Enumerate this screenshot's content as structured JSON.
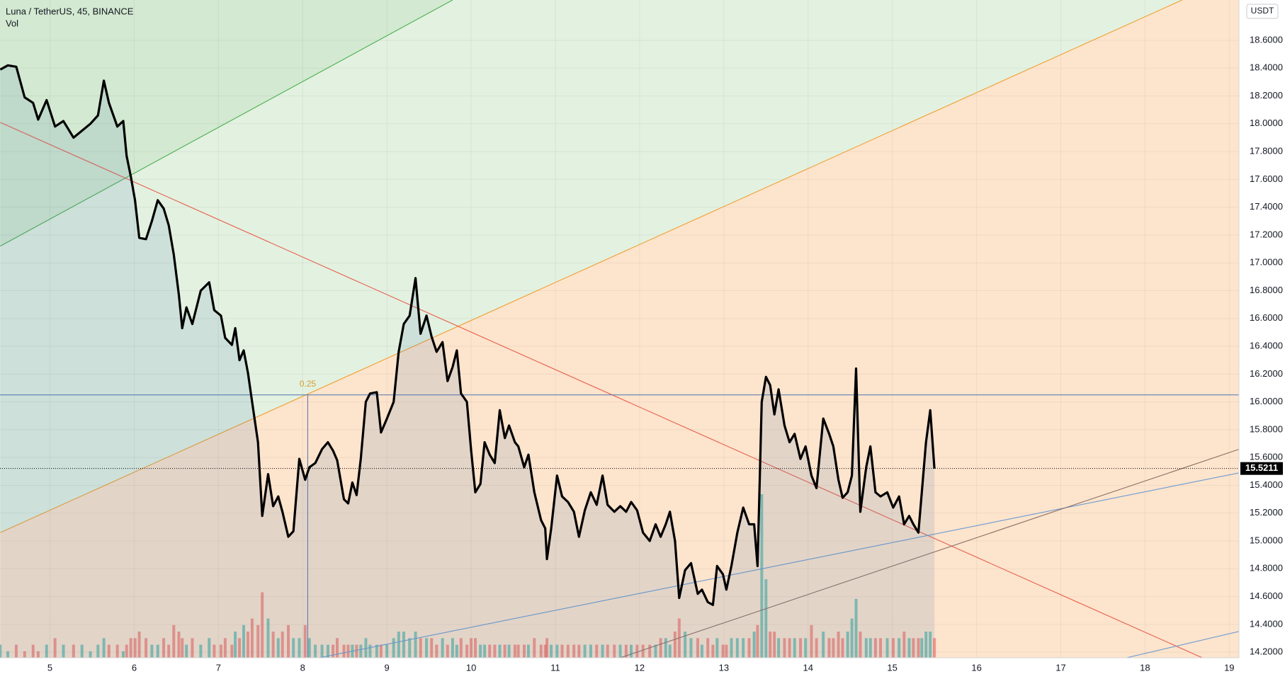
{
  "chart_data": {
    "type": "line",
    "currency": "USDT",
    "background": "#fde4cd",
    "grid": true,
    "xlim": [
      4.407,
      19.115
    ],
    "xticks": [
      5,
      6,
      7,
      8,
      9,
      10,
      11,
      12,
      13,
      14,
      15,
      16,
      17,
      18,
      19
    ],
    "ylim": [
      14.16,
      18.89
    ],
    "yticks": [
      {
        "value": 14.2,
        "label": "14.2000"
      },
      {
        "value": 14.4,
        "label": "14.4000"
      },
      {
        "value": 14.6,
        "label": "14.6000"
      },
      {
        "value": 14.8,
        "label": "14.8000"
      },
      {
        "value": 15.0,
        "label": "15.0000"
      },
      {
        "value": 15.2,
        "label": "15.2000"
      },
      {
        "value": 15.4,
        "label": "15.4000"
      },
      {
        "value": 15.6,
        "label": "15.6000"
      },
      {
        "value": 15.8,
        "label": "15.8000"
      },
      {
        "value": 16.0,
        "label": "16.0000"
      },
      {
        "value": 16.2,
        "label": "16.2000"
      },
      {
        "value": 16.4,
        "label": "16.4000"
      },
      {
        "value": 16.6,
        "label": "16.6000"
      },
      {
        "value": 16.8,
        "label": "16.8000"
      },
      {
        "value": 17.0,
        "label": "17.0000"
      },
      {
        "value": 17.2,
        "label": "17.2000"
      },
      {
        "value": 17.4,
        "label": "17.4000"
      },
      {
        "value": 17.6,
        "label": "17.6000"
      },
      {
        "value": 17.8,
        "label": "17.8000"
      },
      {
        "value": 18.0,
        "label": "18.0000"
      },
      {
        "value": 18.2,
        "label": "18.2000"
      },
      {
        "value": 18.4,
        "label": "18.4000"
      },
      {
        "value": 18.6,
        "label": "18.6000"
      }
    ],
    "x": [
      4.41,
      4.5,
      4.6,
      4.7,
      4.8,
      4.86,
      4.96,
      5.06,
      5.16,
      5.28,
      5.38,
      5.48,
      5.57,
      5.64,
      5.7,
      5.8,
      5.87,
      5.91,
      5.96,
      6.01,
      6.06,
      6.14,
      6.21,
      6.28,
      6.35,
      6.41,
      6.47,
      6.53,
      6.57,
      6.62,
      6.69,
      6.79,
      6.89,
      6.95,
      7.03,
      7.08,
      7.16,
      7.2,
      7.25,
      7.3,
      7.35,
      7.4,
      7.47,
      7.52,
      7.59,
      7.65,
      7.71,
      7.76,
      7.83,
      7.89,
      7.96,
      8.03,
      8.08,
      8.15,
      8.23,
      8.3,
      8.36,
      8.41,
      8.49,
      8.54,
      8.59,
      8.64,
      8.69,
      8.75,
      8.8,
      8.88,
      8.93,
      9.0,
      9.08,
      9.14,
      9.2,
      9.27,
      9.34,
      9.4,
      9.47,
      9.53,
      9.59,
      9.66,
      9.72,
      9.78,
      9.83,
      9.88,
      9.95,
      10.0,
      10.05,
      10.11,
      10.16,
      10.22,
      10.28,
      10.34,
      10.4,
      10.45,
      10.52,
      10.56,
      10.63,
      10.68,
      10.75,
      10.83,
      10.88,
      10.9,
      10.95,
      11.02,
      11.08,
      11.15,
      11.22,
      11.28,
      11.35,
      11.42,
      11.49,
      11.56,
      11.62,
      11.7,
      11.77,
      11.84,
      11.9,
      11.97,
      12.04,
      12.12,
      12.19,
      12.25,
      12.31,
      12.36,
      12.42,
      12.47,
      12.54,
      12.61,
      12.69,
      12.74,
      12.81,
      12.87,
      12.92,
      12.99,
      13.03,
      13.09,
      13.16,
      13.23,
      13.3,
      13.36,
      13.4,
      13.45,
      13.5,
      13.55,
      13.6,
      13.65,
      13.72,
      13.78,
      13.84,
      13.91,
      13.97,
      14.04,
      14.1,
      14.18,
      14.25,
      14.3,
      14.36,
      14.41,
      14.47,
      14.52,
      14.57,
      14.62,
      14.69,
      14.74,
      14.8,
      14.86,
      14.94,
      15.01,
      15.08,
      15.14,
      15.2,
      15.25,
      15.31,
      15.35,
      15.4,
      15.45,
      15.5
    ],
    "series": [
      {
        "name": "Luna / TetherUS, 45, BINANCE",
        "color": "#000000",
        "area_color": "rgba(70,120,170,0.14)",
        "values": [
          18.39,
          18.42,
          18.41,
          18.19,
          18.15,
          18.03,
          18.17,
          17.98,
          18.02,
          17.9,
          17.95,
          18.0,
          18.06,
          18.31,
          18.15,
          17.98,
          18.02,
          17.77,
          17.62,
          17.45,
          17.18,
          17.17,
          17.3,
          17.45,
          17.39,
          17.27,
          17.06,
          16.77,
          16.53,
          16.68,
          16.56,
          16.8,
          16.86,
          16.66,
          16.62,
          16.46,
          16.41,
          16.53,
          16.3,
          16.37,
          16.21,
          16.0,
          15.71,
          15.18,
          15.48,
          15.25,
          15.32,
          15.21,
          15.03,
          15.07,
          15.59,
          15.44,
          15.53,
          15.56,
          15.66,
          15.71,
          15.65,
          15.58,
          15.3,
          15.27,
          15.42,
          15.33,
          15.59,
          16.0,
          16.06,
          16.07,
          15.78,
          15.88,
          16.0,
          16.36,
          16.56,
          16.62,
          16.89,
          16.49,
          16.62,
          16.47,
          16.36,
          16.43,
          16.15,
          16.25,
          16.37,
          16.06,
          16.0,
          15.65,
          15.35,
          15.41,
          15.71,
          15.62,
          15.56,
          15.94,
          15.74,
          15.83,
          15.71,
          15.68,
          15.53,
          15.62,
          15.35,
          15.15,
          15.09,
          14.87,
          15.09,
          15.47,
          15.32,
          15.28,
          15.21,
          15.03,
          15.22,
          15.35,
          15.26,
          15.47,
          15.26,
          15.21,
          15.25,
          15.21,
          15.28,
          15.22,
          15.06,
          15.0,
          15.12,
          15.03,
          15.12,
          15.21,
          15.0,
          14.59,
          14.79,
          14.84,
          14.62,
          14.65,
          14.56,
          14.54,
          14.82,
          14.76,
          14.65,
          14.82,
          15.06,
          15.24,
          15.12,
          15.12,
          14.82,
          16.0,
          16.18,
          16.12,
          15.91,
          16.09,
          15.83,
          15.71,
          15.77,
          15.59,
          15.68,
          15.47,
          15.38,
          15.88,
          15.77,
          15.68,
          15.44,
          15.31,
          15.35,
          15.47,
          16.24,
          15.21,
          15.53,
          15.68,
          15.35,
          15.32,
          15.35,
          15.24,
          15.32,
          15.12,
          15.18,
          15.12,
          15.06,
          15.35,
          15.71,
          15.94,
          15.52
        ]
      },
      {
        "name": "Vol",
        "type": "bar",
        "up_color": "rgba(38,166,154,0.55)",
        "down_color": "rgba(239,83,80,0.55)",
        "values": [
          2,
          1,
          2,
          1,
          2,
          1,
          2,
          3,
          2,
          2,
          2,
          1,
          2,
          3,
          2,
          2,
          1,
          2,
          3,
          3,
          4,
          3,
          2,
          2,
          3,
          2,
          5,
          4,
          3,
          2,
          3,
          2,
          3,
          2,
          2,
          3,
          2,
          4,
          3,
          5,
          4,
          6,
          5,
          10,
          6,
          4,
          3,
          4,
          5,
          3,
          3,
          5,
          3,
          2,
          2,
          2,
          2,
          3,
          2,
          2,
          2,
          2,
          2,
          3,
          2,
          2,
          2,
          2,
          3,
          4,
          4,
          3,
          4,
          3,
          3,
          3,
          2,
          3,
          2,
          3,
          2,
          3,
          2,
          3,
          3,
          2,
          2,
          2,
          2,
          2,
          2,
          2,
          2,
          2,
          2,
          2,
          3,
          2,
          2,
          3,
          2,
          2,
          2,
          2,
          2,
          2,
          2,
          2,
          2,
          2,
          2,
          2,
          2,
          2,
          2,
          2,
          2,
          2,
          2,
          3,
          3,
          2,
          4,
          6,
          4,
          3,
          3,
          2,
          3,
          2,
          3,
          2,
          2,
          3,
          3,
          3,
          3,
          4,
          5,
          25,
          12,
          4,
          4,
          3,
          3,
          3,
          3,
          3,
          3,
          5,
          3,
          4,
          3,
          3,
          4,
          3,
          4,
          6,
          9,
          4,
          3,
          3,
          3,
          3,
          3,
          3,
          3,
          4,
          3,
          3,
          3,
          3,
          4,
          4,
          3
        ]
      }
    ],
    "trendlines": [
      {
        "color": "#4caf50",
        "fill_above": "#d3e9d1",
        "points": [
          [
            4.41,
            17.12
          ],
          [
            9.78,
            18.89
          ]
        ]
      },
      {
        "color": "#f0a030",
        "fill_above": "#e3f1e1",
        "points": [
          [
            4.41,
            15.06
          ],
          [
            18.44,
            18.89
          ]
        ]
      },
      {
        "color": "#e8604c",
        "points": [
          [
            4.41,
            18.01
          ],
          [
            18.68,
            14.16
          ]
        ]
      },
      {
        "color": "#6a9bd0",
        "points": [
          [
            8.2,
            14.16
          ],
          [
            19.12,
            15.49
          ]
        ]
      },
      {
        "color": "#8d6e63",
        "points": [
          [
            11.77,
            14.16
          ],
          [
            19.12,
            15.66
          ]
        ]
      },
      {
        "color": "#6a9bd0",
        "points": [
          [
            17.78,
            14.16
          ],
          [
            19.12,
            14.35
          ]
        ]
      }
    ],
    "fib_level": {
      "label": "0.25",
      "label_color": "#d4a030",
      "color": "#4f73b0",
      "price": 16.05,
      "x": 8.06
    },
    "last_price": 15.5211
  }
}
